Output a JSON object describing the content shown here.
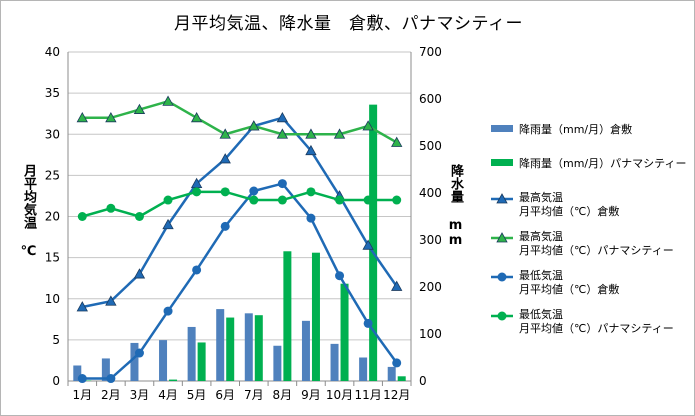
{
  "chart_data": {
    "type": "bar",
    "title": "月平均気温、降水量　倉敷、パナマシティー",
    "ylabel_left": "月平均気温 ℃",
    "ylabel_right": "降水量 mm",
    "categories": [
      "1月",
      "2月",
      "3月",
      "4月",
      "5月",
      "6月",
      "7月",
      "8月",
      "9月",
      "10月",
      "11月",
      "12月"
    ],
    "y_left": {
      "range": [
        0,
        40
      ],
      "ticks": [
        "0",
        "5",
        "10",
        "15",
        "20",
        "25",
        "30",
        "35",
        "40"
      ]
    },
    "y_right": {
      "range": [
        0,
        700
      ],
      "ticks": [
        "0",
        "100",
        "200",
        "300",
        "400",
        "500",
        "600",
        "700"
      ]
    },
    "grid": "horizontal",
    "legend_position": "right",
    "series": [
      {
        "name": "降雨量（mm/月）倉敷",
        "kind": "bar",
        "axis": "right",
        "color": "#4f81bd",
        "values": [
          33,
          48,
          81,
          87,
          115,
          153,
          144,
          75,
          128,
          79,
          50,
          30
        ]
      },
      {
        "name": "降雨量（mm/月）パナマシティー",
        "kind": "bar",
        "axis": "right",
        "color": "#00b050",
        "values": [
          1,
          0,
          0,
          3,
          82,
          135,
          140,
          276,
          273,
          207,
          588,
          10
        ]
      },
      {
        "name": "最高気温 月平均値（℃）倉敷",
        "kind": "line",
        "marker": "triangle",
        "axis": "left",
        "color": "#1f6ab5",
        "values": [
          9,
          9.7,
          13,
          19,
          24,
          27,
          31,
          32,
          28,
          22.5,
          16.5,
          11.5
        ]
      },
      {
        "name": "最高気温 月平均値（℃）パナマシティー",
        "kind": "line",
        "marker": "triangle",
        "axis": "left",
        "color": "#2eb34a",
        "values": [
          32,
          32,
          33,
          34,
          32,
          30,
          31,
          30,
          30,
          30,
          31,
          29
        ]
      },
      {
        "name": "最低気温 月平均値（℃）倉敷",
        "kind": "line",
        "marker": "circle",
        "axis": "left",
        "color": "#1f6ab5",
        "values": [
          0.3,
          0.3,
          3.4,
          8.5,
          13.5,
          18.8,
          23.1,
          24,
          19.8,
          12.8,
          7,
          2.2
        ]
      },
      {
        "name": "最低気温 月平均値（℃）パナマシティー",
        "kind": "line",
        "marker": "circle",
        "axis": "left",
        "color": "#00b050",
        "values": [
          20,
          21,
          20,
          22,
          23,
          23,
          22,
          22,
          23,
          22,
          22,
          22
        ]
      }
    ]
  },
  "legend": [
    {
      "line1": "降雨量（mm/月）倉敷",
      "line2": ""
    },
    {
      "line1": "降雨量（mm/月）パナマシティー",
      "line2": ""
    },
    {
      "line1": "最高気温",
      "line2": "月平均値（℃）倉敷"
    },
    {
      "line1": "最高気温",
      "line2": "月平均値（℃）パナマシティー"
    },
    {
      "line1": "最低気温",
      "line2": "月平均値（℃）倉敷"
    },
    {
      "line1": "最低気温",
      "line2": "月平均値（℃）パナマシティー"
    }
  ]
}
